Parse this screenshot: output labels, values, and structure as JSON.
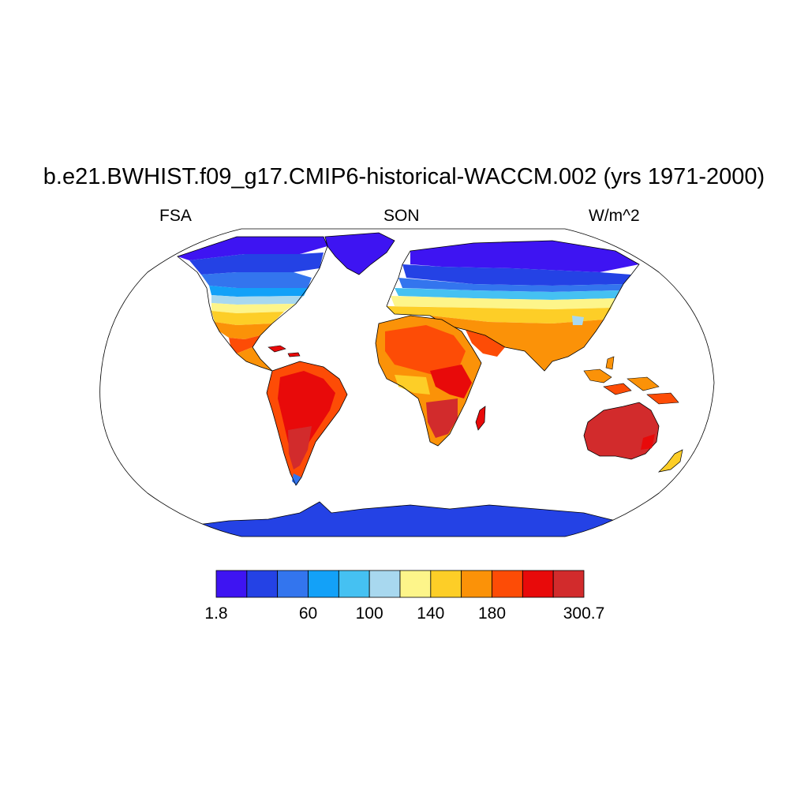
{
  "title": "b.e21.BWHIST.f09_g17.CMIP6-historical-WACCM.002 (yrs 1971-2000)",
  "variable": "FSA",
  "season": "SON",
  "units": "W/m^2",
  "colorbar": {
    "colors": [
      "#3e14f2",
      "#2442e5",
      "#3375ee",
      "#13a1f8",
      "#45c1f2",
      "#a8d8ef",
      "#fdf58a",
      "#fdce27",
      "#fb9208",
      "#fd4c06",
      "#e80a0a",
      "#d22b2c"
    ],
    "labels": [
      "1.8",
      "60",
      "100",
      "140",
      "180",
      "300.7"
    ],
    "label_boundary_index": [
      0,
      3,
      5,
      7,
      9,
      12
    ]
  },
  "map": {
    "projection": "Robinson",
    "ocean_color": "#ffffff",
    "coastline_color": "#000000"
  }
}
